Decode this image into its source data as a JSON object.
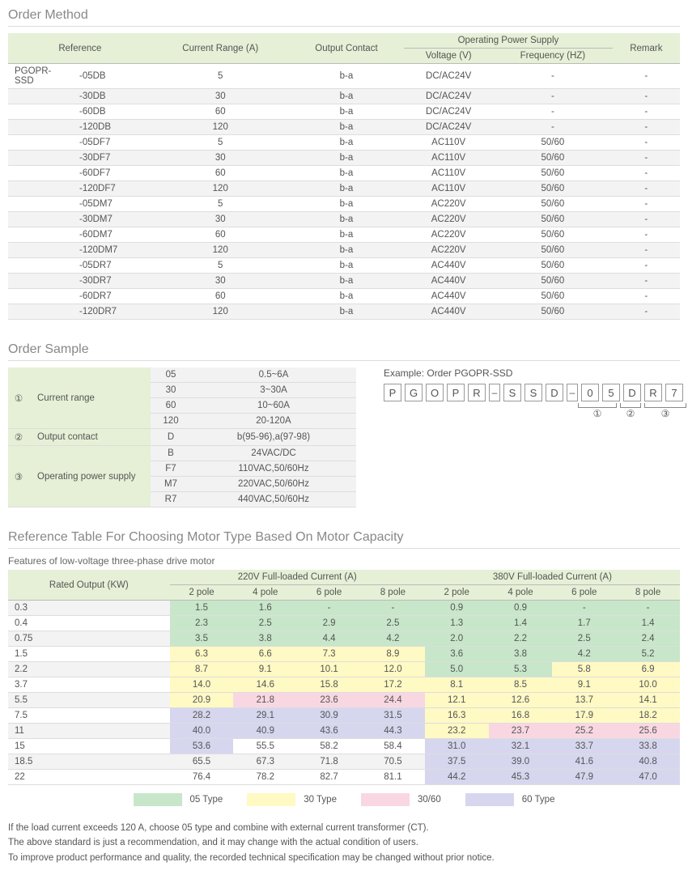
{
  "sections": {
    "order_method": {
      "title": "Order Method"
    },
    "order_sample": {
      "title": "Order Sample"
    },
    "ref_table": {
      "title": "Reference Table For Choosing Motor Type Based On Motor Capacity",
      "subheading": "Features of low-voltage three-phase drive motor"
    }
  },
  "order_method": {
    "headers": {
      "reference": "Reference",
      "current_range": "Current Range (A)",
      "output_contact": "Output Contact",
      "ops": "Operating Power Supply",
      "voltage": "Voltage (V)",
      "frequency": "Frequency (HZ)",
      "remark": "Remark"
    },
    "prefix": "PGOPR-SSD",
    "rows": [
      {
        "suffix": "-05DB",
        "cr": "5",
        "oc": "b-a",
        "v": "DC/AC24V",
        "f": "-",
        "r": "-"
      },
      {
        "suffix": "-30DB",
        "cr": "30",
        "oc": "b-a",
        "v": "DC/AC24V",
        "f": "-",
        "r": "-"
      },
      {
        "suffix": "-60DB",
        "cr": "60",
        "oc": "b-a",
        "v": "DC/AC24V",
        "f": "-",
        "r": "-"
      },
      {
        "suffix": "-120DB",
        "cr": "120",
        "oc": "b-a",
        "v": "DC/AC24V",
        "f": "-",
        "r": "-"
      },
      {
        "suffix": "-05DF7",
        "cr": "5",
        "oc": "b-a",
        "v": "AC110V",
        "f": "50/60",
        "r": "-"
      },
      {
        "suffix": "-30DF7",
        "cr": "30",
        "oc": "b-a",
        "v": "AC110V",
        "f": "50/60",
        "r": "-"
      },
      {
        "suffix": "-60DF7",
        "cr": "60",
        "oc": "b-a",
        "v": "AC110V",
        "f": "50/60",
        "r": "-"
      },
      {
        "suffix": "-120DF7",
        "cr": "120",
        "oc": "b-a",
        "v": "AC110V",
        "f": "50/60",
        "r": "-"
      },
      {
        "suffix": "-05DM7",
        "cr": "5",
        "oc": "b-a",
        "v": "AC220V",
        "f": "50/60",
        "r": "-"
      },
      {
        "suffix": "-30DM7",
        "cr": "30",
        "oc": "b-a",
        "v": "AC220V",
        "f": "50/60",
        "r": "-"
      },
      {
        "suffix": "-60DM7",
        "cr": "60",
        "oc": "b-a",
        "v": "AC220V",
        "f": "50/60",
        "r": "-"
      },
      {
        "suffix": "-120DM7",
        "cr": "120",
        "oc": "b-a",
        "v": "AC220V",
        "f": "50/60",
        "r": "-"
      },
      {
        "suffix": "-05DR7",
        "cr": "5",
        "oc": "b-a",
        "v": "AC440V",
        "f": "50/60",
        "r": "-"
      },
      {
        "suffix": "-30DR7",
        "cr": "30",
        "oc": "b-a",
        "v": "AC440V",
        "f": "50/60",
        "r": "-"
      },
      {
        "suffix": "-60DR7",
        "cr": "60",
        "oc": "b-a",
        "v": "AC440V",
        "f": "50/60",
        "r": "-"
      },
      {
        "suffix": "-120DR7",
        "cr": "120",
        "oc": "b-a",
        "v": "AC440V",
        "f": "50/60",
        "r": "-"
      }
    ]
  },
  "order_sample": {
    "groups": [
      {
        "num": "①",
        "label": "Current range",
        "items": [
          {
            "code": "05",
            "desc": "0.5~6A"
          },
          {
            "code": "30",
            "desc": "3~30A"
          },
          {
            "code": "60",
            "desc": "10~60A"
          },
          {
            "code": "120",
            "desc": "20-120A"
          }
        ]
      },
      {
        "num": "②",
        "label": "Output contact",
        "items": [
          {
            "code": "D",
            "desc": "b(95-96),a(97-98)"
          }
        ]
      },
      {
        "num": "③",
        "label": "Operating power supply",
        "items": [
          {
            "code": "B",
            "desc": "24VAC/DC"
          },
          {
            "code": "F7",
            "desc": "110VAC,50/60Hz"
          },
          {
            "code": "M7",
            "desc": "220VAC,50/60Hz"
          },
          {
            "code": "R7",
            "desc": "440VAC,50/60Hz"
          }
        ]
      }
    ],
    "example_label": "Example:  Order PGOPR-SSD",
    "code_chars": [
      "P",
      "G",
      "O",
      "P",
      "R",
      "–",
      "S",
      "S",
      "D",
      "–",
      "0",
      "5",
      "D",
      "R",
      "7"
    ],
    "under_nums": [
      "①",
      "②",
      "③"
    ]
  },
  "ref_table": {
    "headers": {
      "rated": "Rated Output (KW)",
      "v220": "220V Full-loaded Current (A)",
      "v380": "380V Full-loaded Current (A)",
      "p2": "2 pole",
      "p4": "4 pole",
      "p6": "6 pole",
      "p8": "8 pole"
    },
    "rows": [
      {
        "kw": "0.3",
        "v220": [
          {
            "v": "1.5",
            "c": "c05"
          },
          {
            "v": "1.6",
            "c": "c05"
          },
          {
            "v": "-",
            "c": "c05"
          },
          {
            "v": "-",
            "c": "c05"
          }
        ],
        "v380": [
          {
            "v": "0.9",
            "c": "c05"
          },
          {
            "v": "0.9",
            "c": "c05"
          },
          {
            "v": "-",
            "c": "c05"
          },
          {
            "v": "-",
            "c": "c05"
          }
        ]
      },
      {
        "kw": "0.4",
        "v220": [
          {
            "v": "2.3",
            "c": "c05"
          },
          {
            "v": "2.5",
            "c": "c05"
          },
          {
            "v": "2.9",
            "c": "c05"
          },
          {
            "v": "2.5",
            "c": "c05"
          }
        ],
        "v380": [
          {
            "v": "1.3",
            "c": "c05"
          },
          {
            "v": "1.4",
            "c": "c05"
          },
          {
            "v": "1.7",
            "c": "c05"
          },
          {
            "v": "1.4",
            "c": "c05"
          }
        ]
      },
      {
        "kw": "0.75",
        "v220": [
          {
            "v": "3.5",
            "c": "c05"
          },
          {
            "v": "3.8",
            "c": "c05"
          },
          {
            "v": "4.4",
            "c": "c05"
          },
          {
            "v": "4.2",
            "c": "c05"
          }
        ],
        "v380": [
          {
            "v": "2.0",
            "c": "c05"
          },
          {
            "v": "2.2",
            "c": "c05"
          },
          {
            "v": "2.5",
            "c": "c05"
          },
          {
            "v": "2.4",
            "c": "c05"
          }
        ]
      },
      {
        "kw": "1.5",
        "v220": [
          {
            "v": "6.3",
            "c": "c30"
          },
          {
            "v": "6.6",
            "c": "c30"
          },
          {
            "v": "7.3",
            "c": "c30"
          },
          {
            "v": "8.9",
            "c": "c30"
          }
        ],
        "v380": [
          {
            "v": "3.6",
            "c": "c05"
          },
          {
            "v": "3.8",
            "c": "c05"
          },
          {
            "v": "4.2",
            "c": "c05"
          },
          {
            "v": "5.2",
            "c": "c05"
          }
        ]
      },
      {
        "kw": "2.2",
        "v220": [
          {
            "v": "8.7",
            "c": "c30"
          },
          {
            "v": "9.1",
            "c": "c30"
          },
          {
            "v": "10.1",
            "c": "c30"
          },
          {
            "v": "12.0",
            "c": "c30"
          }
        ],
        "v380": [
          {
            "v": "5.0",
            "c": "c05"
          },
          {
            "v": "5.3",
            "c": "c05"
          },
          {
            "v": "5.8",
            "c": "c30"
          },
          {
            "v": "6.9",
            "c": "c30"
          }
        ]
      },
      {
        "kw": "3.7",
        "v220": [
          {
            "v": "14.0",
            "c": "c30"
          },
          {
            "v": "14.6",
            "c": "c30"
          },
          {
            "v": "15.8",
            "c": "c30"
          },
          {
            "v": "17.2",
            "c": "c30"
          }
        ],
        "v380": [
          {
            "v": "8.1",
            "c": "c30"
          },
          {
            "v": "8.5",
            "c": "c30"
          },
          {
            "v": "9.1",
            "c": "c30"
          },
          {
            "v": "10.0",
            "c": "c30"
          }
        ]
      },
      {
        "kw": "5.5",
        "v220": [
          {
            "v": "20.9",
            "c": "c30"
          },
          {
            "v": "21.8",
            "c": "c3060"
          },
          {
            "v": "23.6",
            "c": "c3060"
          },
          {
            "v": "24.4",
            "c": "c3060"
          }
        ],
        "v380": [
          {
            "v": "12.1",
            "c": "c30"
          },
          {
            "v": "12.6",
            "c": "c30"
          },
          {
            "v": "13.7",
            "c": "c30"
          },
          {
            "v": "14.1",
            "c": "c30"
          }
        ]
      },
      {
        "kw": "7.5",
        "v220": [
          {
            "v": "28.2",
            "c": "c60"
          },
          {
            "v": "29.1",
            "c": "c60"
          },
          {
            "v": "30.9",
            "c": "c60"
          },
          {
            "v": "31.5",
            "c": "c60"
          }
        ],
        "v380": [
          {
            "v": "16.3",
            "c": "c30"
          },
          {
            "v": "16.8",
            "c": "c30"
          },
          {
            "v": "17.9",
            "c": "c30"
          },
          {
            "v": "18.2",
            "c": "c30"
          }
        ]
      },
      {
        "kw": "11",
        "v220": [
          {
            "v": "40.0",
            "c": "c60"
          },
          {
            "v": "40.9",
            "c": "c60"
          },
          {
            "v": "43.6",
            "c": "c60"
          },
          {
            "v": "44.3",
            "c": "c60"
          }
        ],
        "v380": [
          {
            "v": "23.2",
            "c": "c30"
          },
          {
            "v": "23.7",
            "c": "c3060"
          },
          {
            "v": "25.2",
            "c": "c3060"
          },
          {
            "v": "25.6",
            "c": "c3060"
          }
        ]
      },
      {
        "kw": "15",
        "v220": [
          {
            "v": "53.6",
            "c": "c60"
          },
          {
            "v": "55.5",
            "c": ""
          },
          {
            "v": "58.2",
            "c": ""
          },
          {
            "v": "58.4",
            "c": ""
          }
        ],
        "v380": [
          {
            "v": "31.0",
            "c": "c60"
          },
          {
            "v": "32.1",
            "c": "c60"
          },
          {
            "v": "33.7",
            "c": "c60"
          },
          {
            "v": "33.8",
            "c": "c60"
          }
        ]
      },
      {
        "kw": "18.5",
        "v220": [
          {
            "v": "65.5",
            "c": ""
          },
          {
            "v": "67.3",
            "c": ""
          },
          {
            "v": "71.8",
            "c": ""
          },
          {
            "v": "70.5",
            "c": ""
          }
        ],
        "v380": [
          {
            "v": "37.5",
            "c": "c60"
          },
          {
            "v": "39.0",
            "c": "c60"
          },
          {
            "v": "41.6",
            "c": "c60"
          },
          {
            "v": "40.8",
            "c": "c60"
          }
        ]
      },
      {
        "kw": "22",
        "v220": [
          {
            "v": "76.4",
            "c": ""
          },
          {
            "v": "78.2",
            "c": ""
          },
          {
            "v": "82.7",
            "c": ""
          },
          {
            "v": "81.1",
            "c": ""
          }
        ],
        "v380": [
          {
            "v": "44.2",
            "c": "c60"
          },
          {
            "v": "45.3",
            "c": "c60"
          },
          {
            "v": "47.9",
            "c": "c60"
          },
          {
            "v": "47.0",
            "c": "c60"
          }
        ]
      }
    ],
    "legend": [
      {
        "color": "#c8e6c9",
        "label": "05 Type"
      },
      {
        "color": "#fff9c4",
        "label": "30 Type"
      },
      {
        "color": "#f8d7e3",
        "label": "30/60"
      },
      {
        "color": "#d6d6ef",
        "label": "60 Type"
      }
    ]
  },
  "footnotes": [
    "If the load current exceeds 120 A, choose 05 type and combine with external current transformer (CT).",
    "The above standard is just a recommendation, and it may change with the actual condition of users.",
    "To improve product performance and quality, the recorded technical specification may be changed without prior notice."
  ],
  "colors": {
    "header_bg": "#e5f0d6",
    "alt_row": "#f3f3f3",
    "c05": "#c8e6c9",
    "c30": "#fff9c4",
    "c3060": "#f8d7e3",
    "c60": "#d6d6ef"
  }
}
